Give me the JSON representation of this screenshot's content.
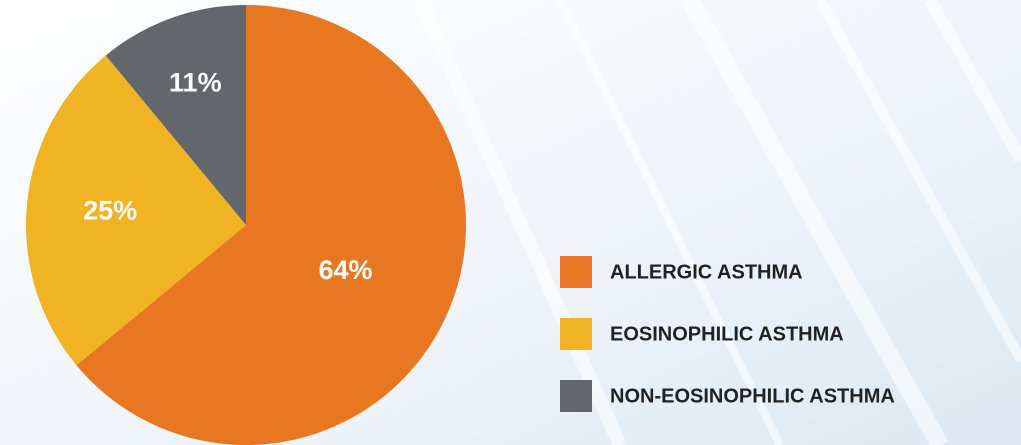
{
  "chart_data": {
    "type": "pie",
    "categories": [
      "ALLERGIC ASTHMA",
      "EOSINOPHILIC ASTHMA",
      "NON-EOSINOPHILIC ASTHMA"
    ],
    "values": [
      64,
      25,
      11
    ],
    "value_labels": [
      "64%",
      "25%",
      "11%"
    ],
    "colors": [
      "#e87722",
      "#f0b323",
      "#63666a"
    ],
    "legend": "right"
  }
}
